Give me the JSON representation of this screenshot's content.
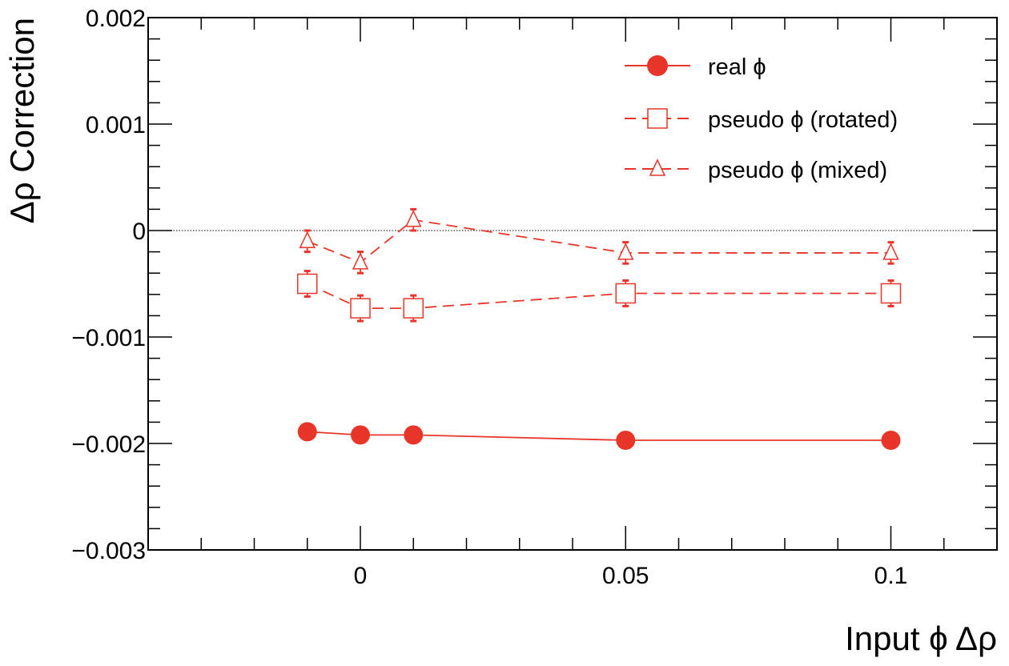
{
  "chart_data": {
    "type": "line",
    "title": "",
    "xlabel": "Input ϕ Δρ",
    "ylabel": "Δρ Correction",
    "xlim": [
      -0.04,
      0.12
    ],
    "ylim": [
      -0.003,
      0.002
    ],
    "x_ticks": [
      0,
      0.05,
      0.1
    ],
    "x_tick_labels": [
      "0",
      "0.05",
      "0.1"
    ],
    "y_ticks": [
      -0.003,
      -0.002,
      -0.001,
      0,
      0.001,
      0.002
    ],
    "y_tick_labels": [
      "−0.003",
      "−0.002",
      "−0.001",
      "0",
      "0.001",
      "0.002"
    ],
    "reference_line": 0,
    "grid": false,
    "legend_position": "top-right",
    "color": "#e8352a",
    "series": [
      {
        "name": "real ϕ",
        "marker": "filled-circle",
        "line_style": "solid",
        "x": [
          -0.01,
          0,
          0.01,
          0.05,
          0.1
        ],
        "y": [
          -0.00189,
          -0.00192,
          -0.00192,
          -0.00197,
          -0.00197
        ],
        "err": [
          0,
          0,
          0,
          0,
          0
        ]
      },
      {
        "name": "pseudo ϕ (rotated)",
        "marker": "open-square",
        "line_style": "dashed",
        "x": [
          -0.01,
          0,
          0.01,
          0.05,
          0.1
        ],
        "y": [
          -0.0005,
          -0.00073,
          -0.00073,
          -0.00059,
          -0.00059
        ],
        "err": [
          0.00012,
          0.00012,
          0.00012,
          0.00012,
          0.00012
        ]
      },
      {
        "name": "pseudo ϕ (mixed)",
        "marker": "open-triangle",
        "line_style": "dashed",
        "x": [
          -0.01,
          0,
          0.01,
          0.05,
          0.1
        ],
        "y": [
          -0.0001,
          -0.0003,
          0.0001,
          -0.00021,
          -0.00021
        ],
        "err": [
          0.0001,
          0.0001,
          0.0001,
          0.0001,
          0.0001
        ]
      }
    ]
  }
}
